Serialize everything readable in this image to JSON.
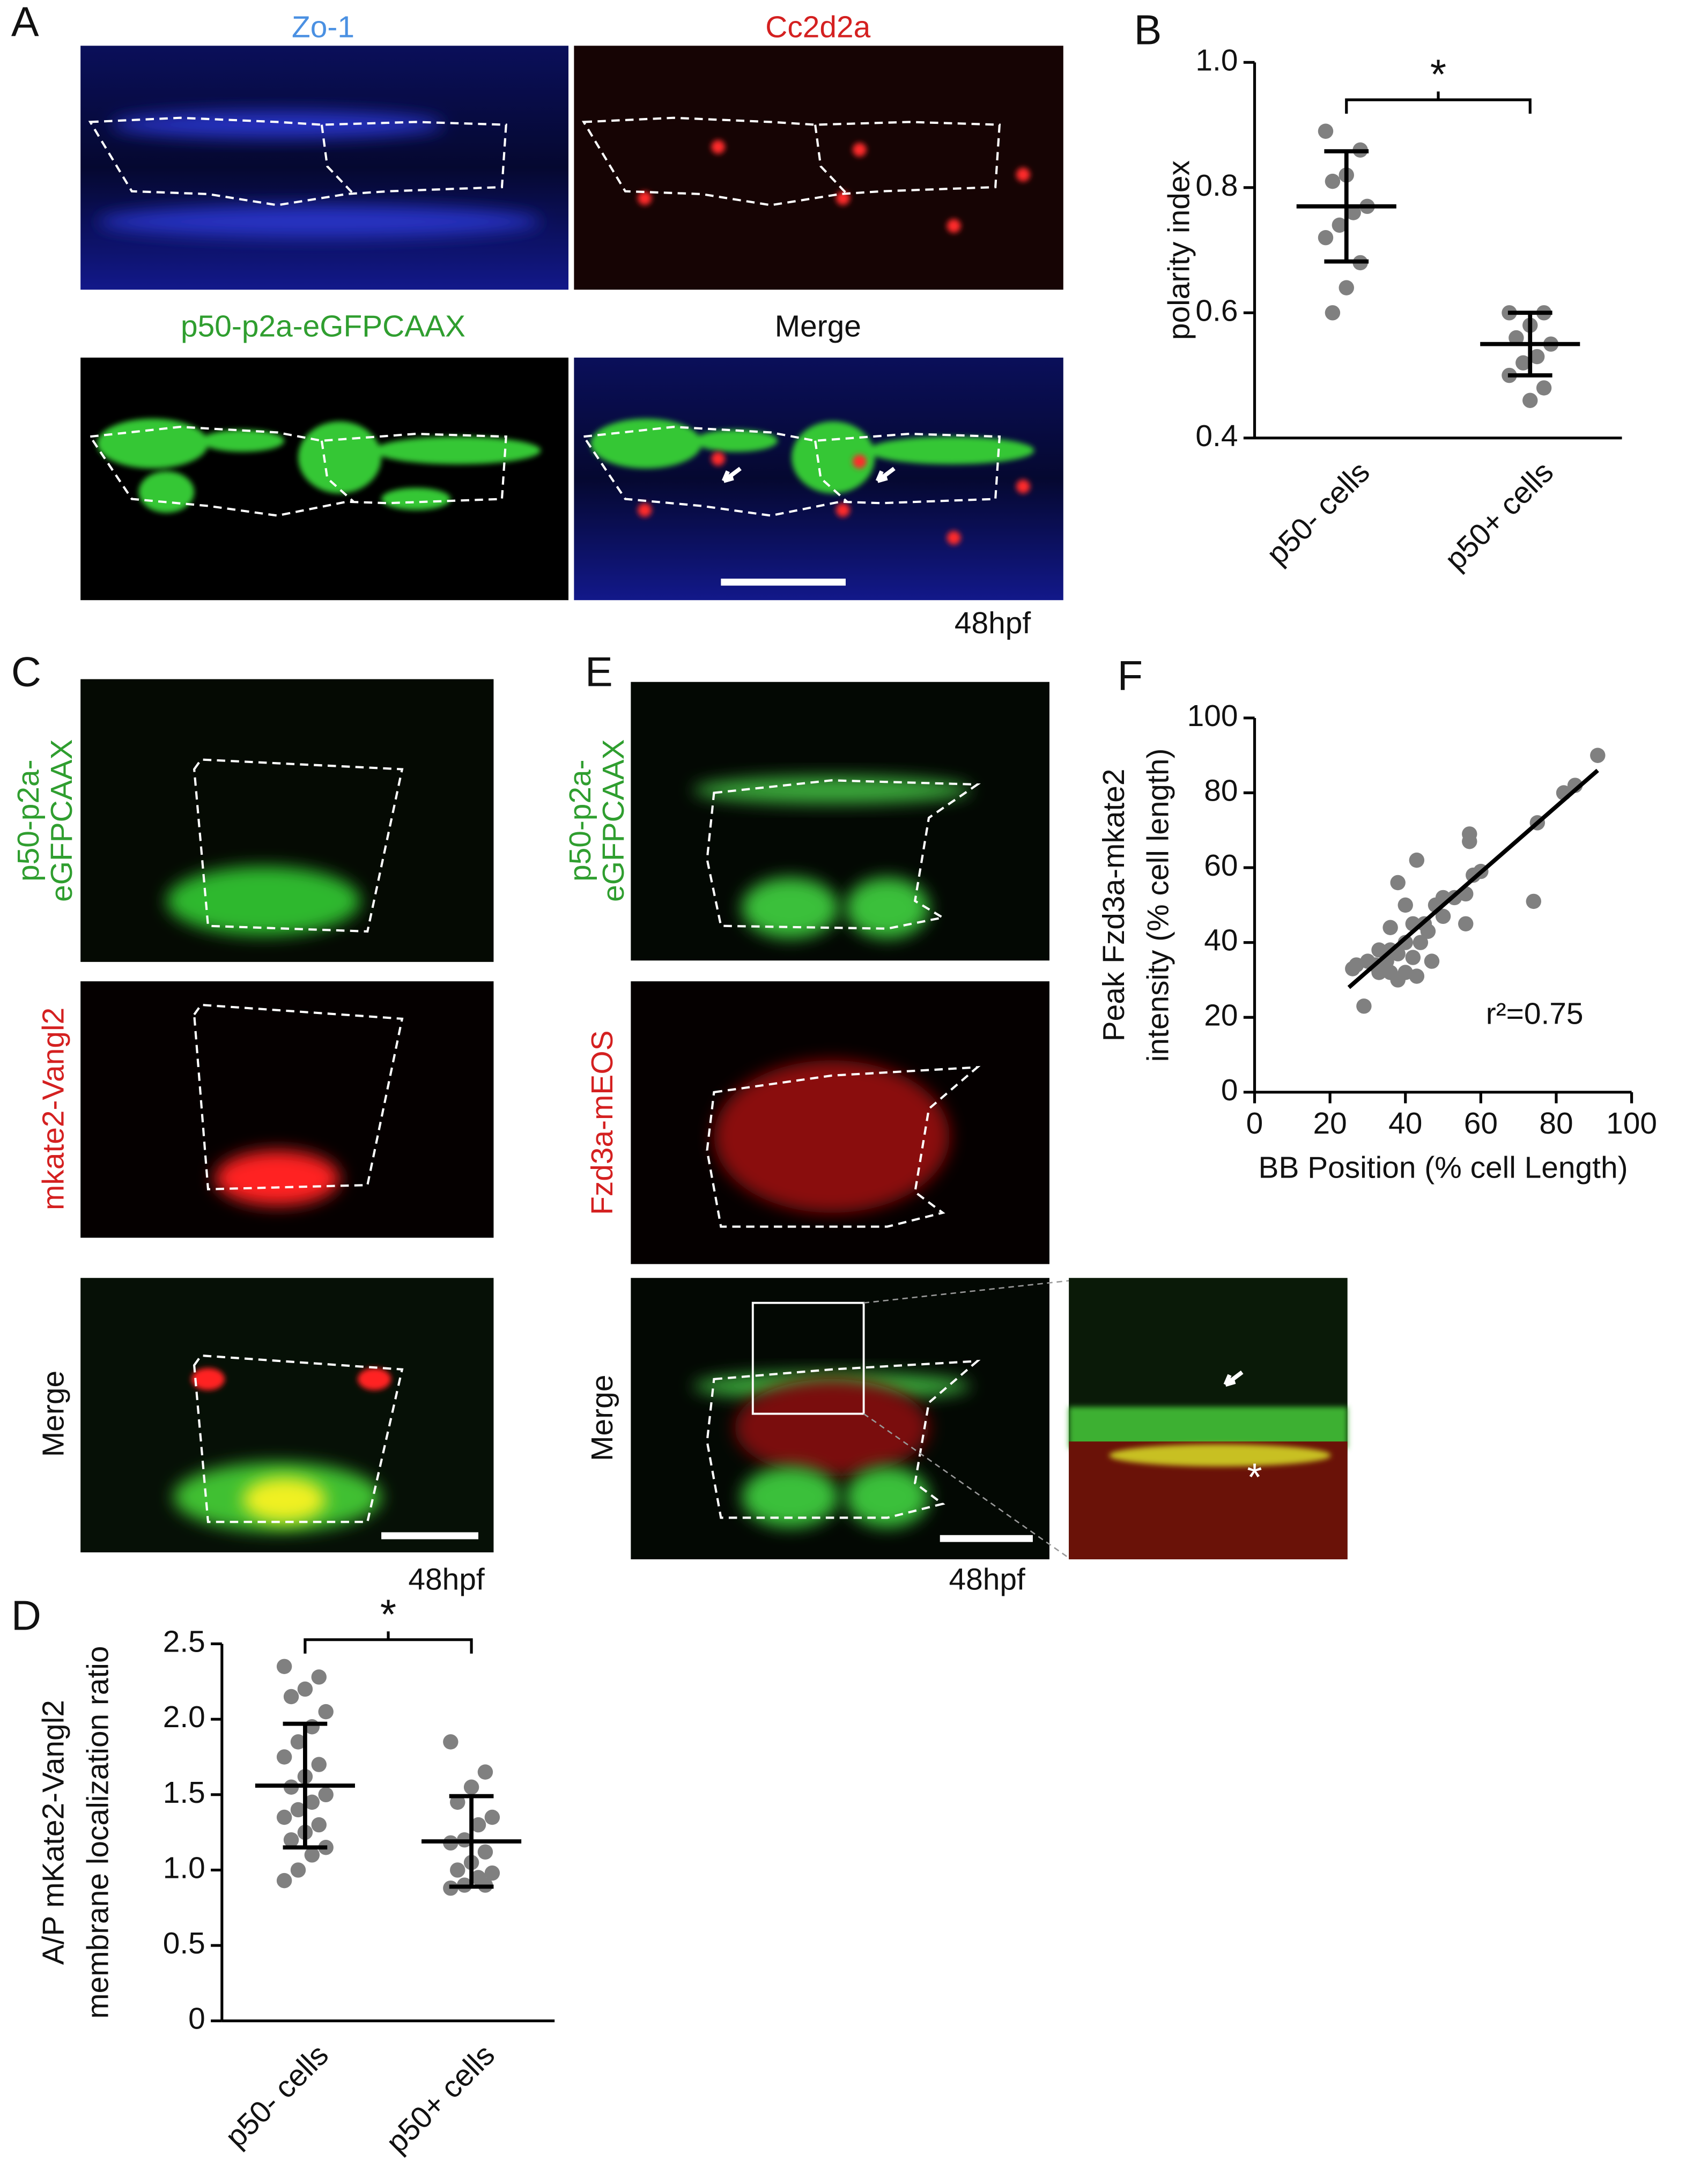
{
  "panels": {
    "A": {
      "letter": "A",
      "labels": [
        "Zo-1",
        "Cc2d2a",
        "p50-p2a-eGFPCAAX",
        "Merge"
      ],
      "stage": "48hpf"
    },
    "B": {
      "letter": "B"
    },
    "C": {
      "letter": "C",
      "labels": [
        [
          "p50-p2a-",
          "eGFPCAAX"
        ],
        [
          "mkate2-Vangl2"
        ],
        [
          "Merge"
        ]
      ],
      "stage": "48hpf"
    },
    "D": {
      "letter": "D"
    },
    "E": {
      "letter": "E",
      "labels": [
        [
          "p50-p2a-",
          "eGFPCAAX"
        ],
        [
          "Fzd3a-mEOS"
        ],
        [
          "Merge"
        ]
      ],
      "stage": "48hpf",
      "inset_mark": "*"
    },
    "F": {
      "letter": "F"
    }
  },
  "chart_data": [
    {
      "type": "dotplot",
      "ylabel": [
        "polarity index"
      ],
      "ylim": [
        0.4,
        1.0
      ],
      "yticks": [
        0.4,
        0.6,
        0.8,
        {
          "value": 1.0,
          "label": "1.0"
        }
      ],
      "annotation": "*",
      "groups": [
        {
          "name": "p50- cells",
          "color": "#808080",
          "values": [
            0.89,
            0.86,
            0.82,
            0.81,
            0.77,
            0.76,
            0.74,
            0.72,
            0.68,
            0.64,
            0.6
          ],
          "mean": 0.77,
          "sd": 0.088
        },
        {
          "name": "p50+ cells",
          "color": "#808080",
          "values": [
            0.6,
            0.6,
            0.58,
            0.56,
            0.55,
            0.53,
            0.52,
            0.5,
            0.48,
            0.46
          ],
          "mean": 0.55,
          "sd": 0.05
        }
      ]
    },
    {
      "type": "dotplot",
      "ylabel": [
        "A/P mKate2-Vangl2",
        "membrane localization ratio"
      ],
      "ylim": [
        0,
        2.5
      ],
      "yticks": [
        0,
        0.5,
        {
          "value": 1.0,
          "label": "1.0"
        },
        1.5,
        {
          "value": 2.0,
          "label": "2.0"
        },
        2.5
      ],
      "annotation": "*",
      "groups": [
        {
          "name": "p50- cells",
          "color": "#808080",
          "values": [
            2.35,
            2.28,
            2.2,
            2.15,
            2.05,
            1.95,
            1.85,
            1.75,
            1.7,
            1.62,
            1.55,
            1.5,
            1.45,
            1.4,
            1.35,
            1.3,
            1.25,
            1.2,
            1.15,
            1.1,
            1.0,
            0.93
          ],
          "mean": 1.56,
          "sd": 0.41
        },
        {
          "name": "p50+ cells",
          "color": "#808080",
          "values": [
            1.85,
            1.65,
            1.55,
            1.45,
            1.35,
            1.3,
            1.2,
            1.18,
            1.12,
            1.05,
            1.0,
            0.98,
            0.95,
            0.9,
            0.88,
            0.9
          ],
          "mean": 1.19,
          "sd": 0.3
        }
      ]
    },
    {
      "type": "scatter",
      "xlabel": "BB Position (% cell Length)",
      "ylabel": [
        "Peak Fzd3a-mkate2",
        "intensity (% cell length)"
      ],
      "xlim": [
        0,
        100
      ],
      "ylim": [
        0,
        100
      ],
      "xticks": [
        0,
        20,
        40,
        60,
        80,
        100
      ],
      "yticks": [
        0,
        20,
        40,
        60,
        80,
        100
      ],
      "color": "#808080",
      "annotation": "r²=0.75",
      "x": [
        91,
        85,
        82,
        75,
        74,
        60,
        58,
        57,
        57,
        56,
        53,
        50,
        48,
        56,
        50,
        43,
        45,
        38,
        40,
        42,
        44,
        46,
        40,
        36,
        38,
        35,
        33,
        32,
        30,
        29,
        27,
        26,
        36,
        40,
        38,
        42,
        33,
        47,
        43,
        36
      ],
      "values": [
        90,
        82,
        80,
        72,
        51,
        59,
        58,
        69,
        67,
        53,
        52,
        52,
        50,
        45,
        47,
        62,
        45,
        56,
        50,
        45,
        40,
        43,
        40,
        38,
        37,
        35,
        32,
        34,
        35,
        23,
        34,
        33,
        32,
        32,
        30,
        36,
        38,
        35,
        31,
        44
      ],
      "fit": {
        "x": [
          25,
          91
        ],
        "y": [
          28,
          86
        ],
        "color": "#000000"
      }
    }
  ]
}
